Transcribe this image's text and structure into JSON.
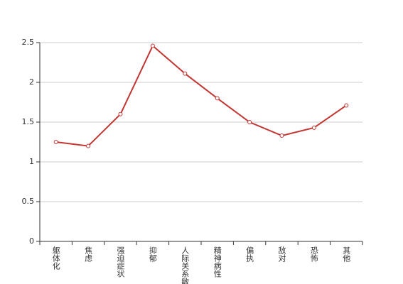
{
  "chart_data": {
    "type": "line",
    "categories": [
      "躯体化",
      "焦虑",
      "强迫症状",
      "抑郁",
      "人际关系敏感",
      "精神病性",
      "偏执",
      "敌对",
      "恐怖",
      "其他"
    ],
    "values": [
      1.25,
      1.2,
      1.6,
      2.46,
      2.11,
      1.8,
      1.5,
      1.33,
      1.43,
      1.71
    ],
    "color": "#c23531",
    "ylim": [
      0,
      2.5
    ],
    "yticks": [
      0,
      0.5,
      1,
      1.5,
      2,
      2.5
    ],
    "grid": true
  }
}
